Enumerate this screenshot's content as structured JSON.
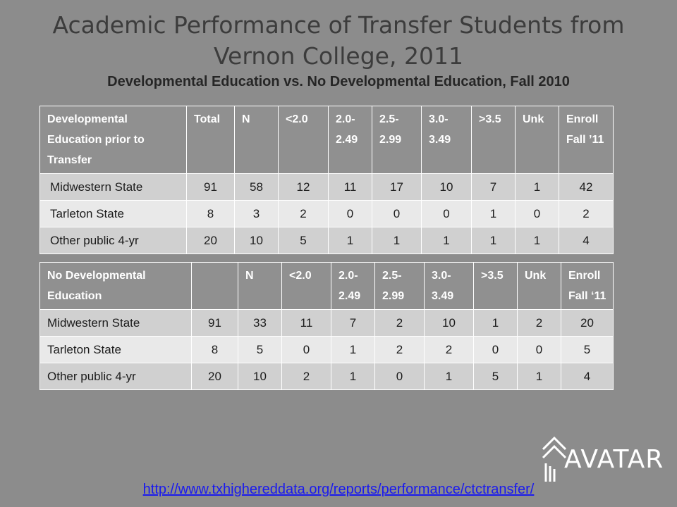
{
  "title": "Academic Performance of Transfer Students from Vernon College, 2011",
  "subtitle": "Developmental Education vs. No Developmental Education, Fall 2010",
  "table1": {
    "headers": [
      "Developmental Education prior to Transfer",
      "Total",
      "N",
      "<2.0",
      "2.0- 2.49",
      "2.5- 2.99",
      "3.0- 3.49",
      ">3.5",
      "Unk",
      "Enroll Fall ’11"
    ],
    "rows": [
      [
        "Midwestern State",
        "91",
        "58",
        "12",
        "11",
        "17",
        "10",
        "7",
        "1",
        "42"
      ],
      [
        "Tarleton State",
        "8",
        "3",
        "2",
        "0",
        "0",
        "0",
        "1",
        "0",
        "2"
      ],
      [
        "Other public 4-yr",
        "20",
        "10",
        "5",
        "1",
        "1",
        "1",
        "1",
        "1",
        "4"
      ]
    ]
  },
  "table2": {
    "headers": [
      "No Developmental Education",
      "",
      "N",
      "<2.0",
      "2.0- 2.49",
      "2.5- 2.99",
      "3.0- 3.49",
      ">3.5",
      "Unk",
      "Enroll Fall ‘11"
    ],
    "rows": [
      [
        "Midwestern State",
        "91",
        "33",
        "11",
        "7",
        "2",
        "10",
        "1",
        "2",
        "20"
      ],
      [
        "Tarleton State",
        "8",
        "5",
        "0",
        "1",
        "2",
        "2",
        "0",
        "0",
        "5"
      ],
      [
        "Other public 4-yr",
        "20",
        "10",
        "2",
        "1",
        "0",
        "1",
        "5",
        "1",
        "4"
      ]
    ]
  },
  "logo": {
    "text": "AVATAR"
  },
  "url": "http://www.txhighereddata.org/reports/performance/ctctransfer/"
}
